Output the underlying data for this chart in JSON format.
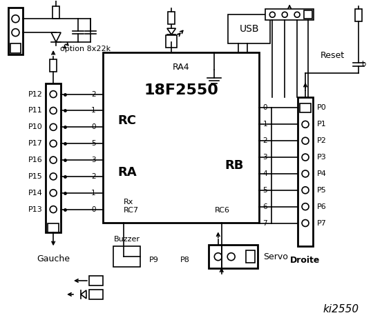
{
  "bg_color": "#ffffff",
  "title": "ki2550",
  "ic_label": "18F2550",
  "ic_sublabel": "RA4",
  "rc_label": "RC",
  "ra_label": "RA",
  "rb_label": "RB",
  "left_pins": [
    "P12",
    "P11",
    "P10",
    "P17",
    "P16",
    "P15",
    "P14",
    "P13"
  ],
  "rc_pin_nums": [
    "2",
    "1",
    "0"
  ],
  "ra_pin_nums": [
    "5",
    "3",
    "2",
    "1",
    "0"
  ],
  "right_pins": [
    "P0",
    "P1",
    "P2",
    "P3",
    "P4",
    "P5",
    "P6",
    "P7"
  ],
  "rb_pin_nums": [
    "0",
    "1",
    "2",
    "3",
    "4",
    "5",
    "6",
    "7"
  ],
  "left_label": "Gauche",
  "right_label": "Droite",
  "option_label": "option 8x22k",
  "reset_label": "Reset",
  "usb_label": "USB",
  "buzzer_label": "Buzzer",
  "servo_label": "Servo",
  "p9_label": "P9",
  "p8_label": "P8",
  "rx_label": "Rx",
  "rc7_label": "RC7",
  "rc6_label": "RC6"
}
